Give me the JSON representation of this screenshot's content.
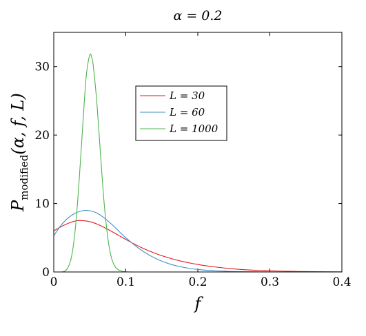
{
  "chart_data": {
    "type": "line",
    "title": "α = 0.2",
    "xlabel": "f",
    "ylabel": "P_modified(α, f, L)",
    "ylabel_main": "P",
    "ylabel_sub": "modified",
    "ylabel_args": "(α, f, L)",
    "xlim": [
      0,
      0.4
    ],
    "ylim": [
      0,
      35
    ],
    "xticks": [
      0,
      0.1,
      0.2,
      0.3,
      0.4
    ],
    "xtick_labels": [
      "0",
      "0.1",
      "0.2",
      "0.3",
      "0.4"
    ],
    "yticks": [
      0,
      10,
      20,
      30
    ],
    "ytick_labels": [
      "0",
      "10",
      "20",
      "30"
    ],
    "legend_position": "upper-center",
    "grid": false,
    "series": [
      {
        "name": "L = 30",
        "color": "#e31a1c",
        "x": [
          0,
          0.01,
          0.02,
          0.03,
          0.04,
          0.05,
          0.06,
          0.07,
          0.08,
          0.09,
          0.1,
          0.12,
          0.14,
          0.16,
          0.18,
          0.2,
          0.22,
          0.25,
          0.28,
          0.3,
          0.33,
          0.36,
          0.4
        ],
        "y": [
          6.0,
          6.6,
          7.1,
          7.45,
          7.5,
          7.35,
          7.0,
          6.5,
          5.95,
          5.35,
          4.75,
          3.65,
          2.75,
          2.05,
          1.5,
          1.1,
          0.78,
          0.45,
          0.25,
          0.17,
          0.09,
          0.05,
          0.02
        ]
      },
      {
        "name": "L = 60",
        "color": "#3c8fc6",
        "x": [
          0,
          0.01,
          0.02,
          0.03,
          0.04,
          0.05,
          0.06,
          0.07,
          0.08,
          0.09,
          0.1,
          0.12,
          0.14,
          0.16,
          0.18,
          0.2,
          0.22,
          0.25,
          0.28,
          0.3,
          0.35,
          0.4
        ],
        "y": [
          5.3,
          6.8,
          7.9,
          8.6,
          8.95,
          8.95,
          8.6,
          7.9,
          7.0,
          6.0,
          5.0,
          3.3,
          2.05,
          1.2,
          0.68,
          0.37,
          0.19,
          0.07,
          0.03,
          0.01,
          0.0,
          0.0
        ]
      },
      {
        "name": "L = 1000",
        "color": "#4db34d",
        "x": [
          0.01,
          0.015,
          0.02,
          0.025,
          0.03,
          0.035,
          0.04,
          0.045,
          0.05,
          0.053,
          0.055,
          0.06,
          0.065,
          0.07,
          0.075,
          0.08,
          0.085,
          0.09,
          0.095,
          0.1,
          0.11,
          0.13,
          0.2,
          0.3,
          0.4
        ],
        "y": [
          0.0,
          0.1,
          0.7,
          2.4,
          6.4,
          13.0,
          21.0,
          28.5,
          31.7,
          31.2,
          30.0,
          24.5,
          17.0,
          10.0,
          5.0,
          2.1,
          0.8,
          0.3,
          0.1,
          0.03,
          0.0,
          0.0,
          0.0,
          0.0,
          0.0
        ]
      }
    ]
  }
}
